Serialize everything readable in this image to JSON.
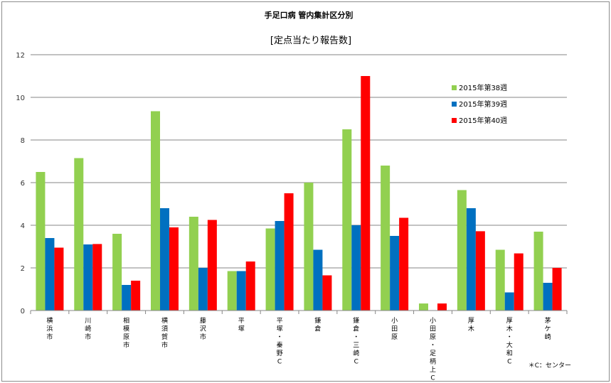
{
  "chart_data": {
    "type": "bar",
    "title": "手足口病 管内集計区分別",
    "subtitle": "[定点当たり報告数]",
    "ylim": [
      0,
      12
    ],
    "yticks": [
      0,
      2,
      4,
      6,
      8,
      10,
      12
    ],
    "grid": true,
    "legend_position": "right",
    "categories": [
      [
        "横",
        "浜",
        "市"
      ],
      [
        "川",
        "崎",
        "市"
      ],
      [
        "相",
        "模",
        "原",
        "市"
      ],
      [
        "横",
        "須",
        "賀",
        "市"
      ],
      [
        "藤",
        "沢",
        "市"
      ],
      [
        "平",
        "塚"
      ],
      [
        "平",
        "塚",
        "・",
        "秦",
        "野",
        "C"
      ],
      [
        "鎌",
        "倉"
      ],
      [
        "鎌",
        "倉",
        "・",
        "三",
        "崎",
        "C"
      ],
      [
        "小",
        "田",
        "原"
      ],
      [
        "小",
        "田",
        "原",
        "・",
        "足",
        "柄",
        "上",
        "C"
      ],
      [
        "厚",
        "木"
      ],
      [
        "厚",
        "木",
        "・",
        "大",
        "和",
        "C"
      ],
      [
        "茅",
        "ケ",
        "崎"
      ]
    ],
    "series": [
      {
        "name": "2015年第38週",
        "color": "#92d050",
        "values": [
          6.5,
          7.15,
          3.6,
          9.35,
          4.4,
          1.85,
          3.85,
          6.0,
          8.5,
          6.8,
          0.33,
          5.65,
          2.85,
          3.7
        ]
      },
      {
        "name": "2015年第39週",
        "color": "#0070c0",
        "values": [
          3.4,
          3.1,
          1.2,
          4.8,
          2.0,
          1.85,
          4.2,
          2.85,
          4.0,
          3.5,
          0.0,
          4.8,
          0.85,
          1.3
        ]
      },
      {
        "name": "2015年第40週",
        "color": "#ff0000",
        "values": [
          2.95,
          3.12,
          1.4,
          3.9,
          4.25,
          2.3,
          5.5,
          1.65,
          11.0,
          4.35,
          0.33,
          3.72,
          2.68,
          2.0
        ]
      }
    ],
    "note": "＊C：センター"
  }
}
